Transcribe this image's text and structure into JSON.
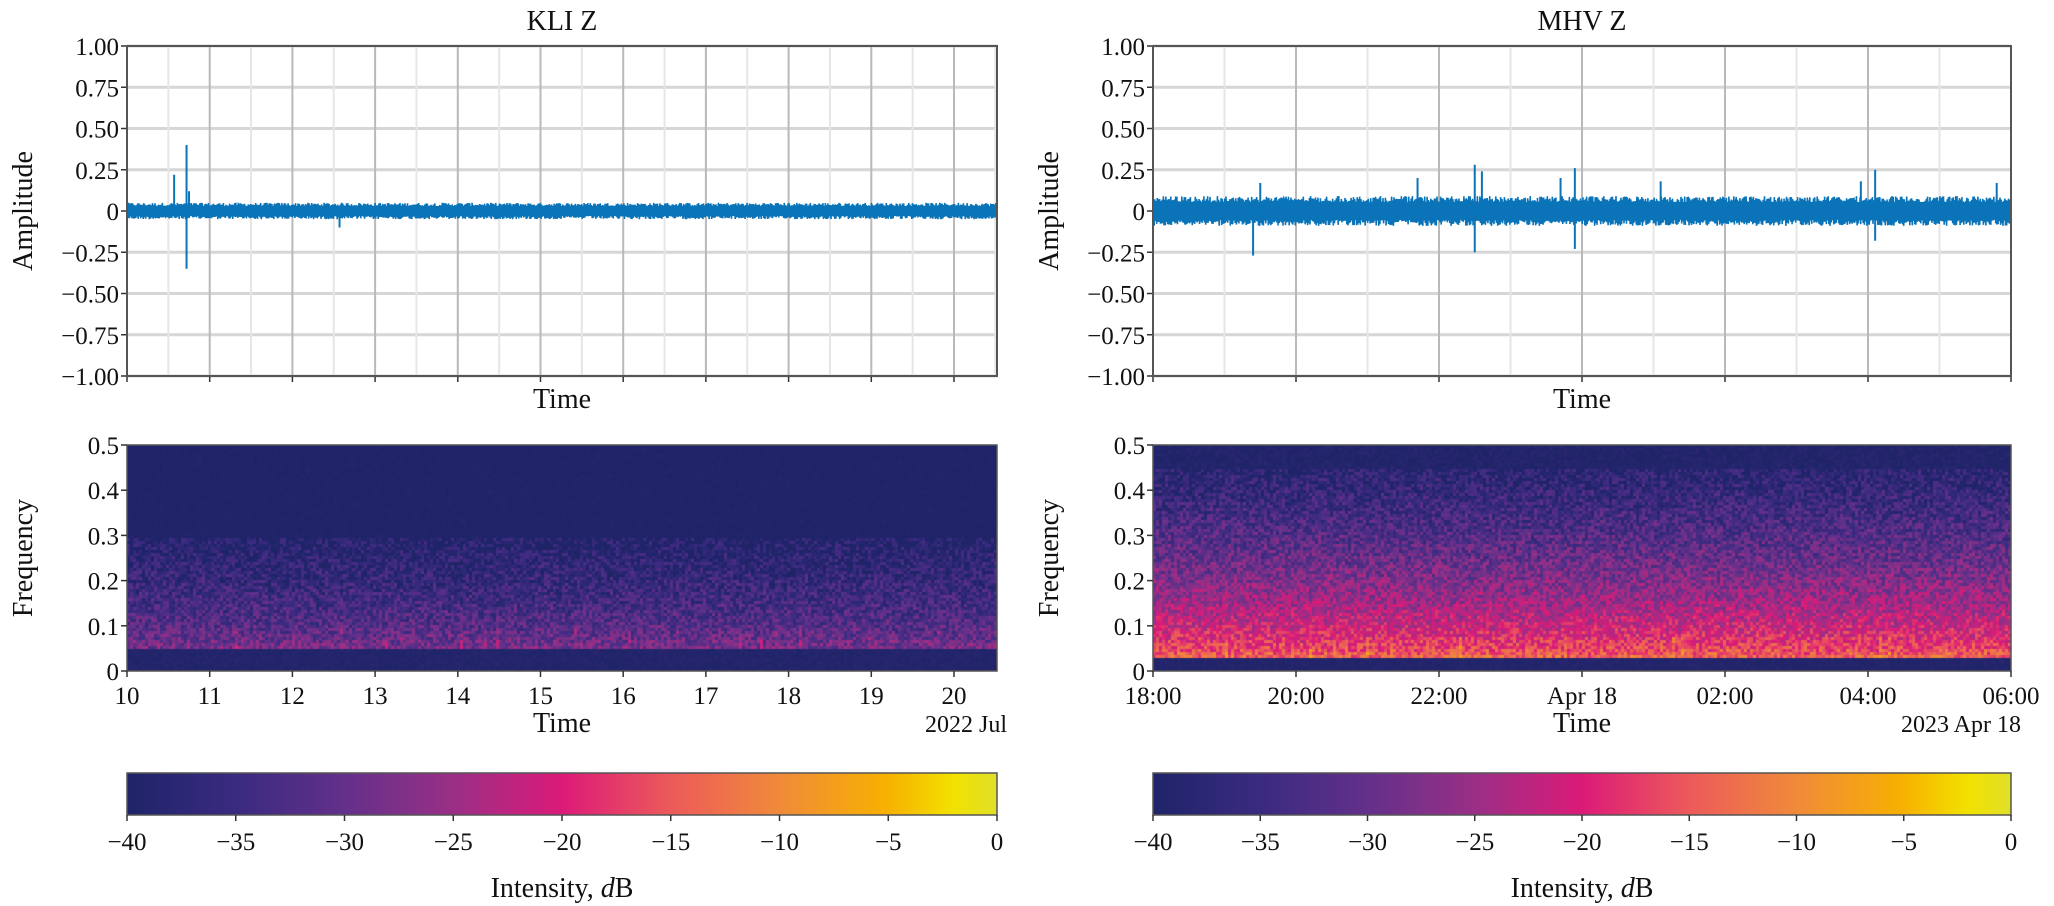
{
  "chart_data": [
    {
      "type": "line",
      "title": "KLI Z",
      "xlabel": "Time",
      "ylabel": "Amplitude",
      "ylim": [
        -1.0,
        1.0
      ],
      "xlim_days": [
        10,
        20.52
      ],
      "yticks": [
        "1.00",
        "0.75",
        "0.50",
        "0.25",
        "0",
        "−0.25",
        "−0.50",
        "−0.75",
        "−1.00"
      ],
      "yticks_values": [
        1,
        0.75,
        0.5,
        0.25,
        0,
        -0.25,
        -0.5,
        -0.75,
        -1
      ],
      "grid": true,
      "color": "#0b74b9",
      "noise_amplitude": 0.05,
      "spikes": [
        {
          "x": 10.57,
          "y": 0.22
        },
        {
          "x": 10.72,
          "y": 0.4
        },
        {
          "x": 10.72,
          "y": -0.35
        },
        {
          "x": 10.75,
          "y": 0.12
        },
        {
          "x": 12.57,
          "y": -0.1
        }
      ]
    },
    {
      "type": "heatmap",
      "xlabel": "Time",
      "ylabel": "Frequency",
      "ylim": [
        0,
        0.5
      ],
      "yticks": [
        "0.5",
        "0.4",
        "0.3",
        "0.2",
        "0.1",
        "0"
      ],
      "yticks_values": [
        0.5,
        0.4,
        0.3,
        0.2,
        0.1,
        0
      ],
      "xlim": [
        10,
        20.52
      ],
      "xticks": [
        "10",
        "11",
        "12",
        "13",
        "14",
        "15",
        "16",
        "17",
        "18",
        "19",
        "20"
      ],
      "xticks_values": [
        10,
        11,
        12,
        13,
        14,
        15,
        16,
        17,
        18,
        19,
        20
      ],
      "x_offset_label": "2022 Jul",
      "band_low": 0.05,
      "band_high": 0.3,
      "peak_db": -27,
      "floor_db": -39
    },
    {
      "type": "colorbar",
      "label_prefix": "Intensity, ",
      "label_unit_italic": "d",
      "label_unit_rest": "B",
      "range": [
        -40,
        0
      ],
      "ticks": [
        "−40",
        "−35",
        "−30",
        "−25",
        "−20",
        "−15",
        "−10",
        "−5",
        "0"
      ],
      "ticks_values": [
        -40,
        -35,
        -30,
        -25,
        -20,
        -15,
        -10,
        -5,
        0
      ]
    },
    {
      "type": "line",
      "title": "MHV Z",
      "xlabel": "Time",
      "ylabel": "Amplitude",
      "ylim": [
        -1.0,
        1.0
      ],
      "xlim_hours": [
        0,
        12
      ],
      "yticks": [
        "1.00",
        "0.75",
        "0.50",
        "0.25",
        "0",
        "−0.25",
        "−0.50",
        "−0.75",
        "−1.00"
      ],
      "yticks_values": [
        1,
        0.75,
        0.5,
        0.25,
        0,
        -0.25,
        -0.5,
        -0.75,
        -1
      ],
      "grid": true,
      "color": "#0b74b9",
      "noise_amplitude": 0.09,
      "spikes": [
        {
          "x": 1.4,
          "y": -0.27
        },
        {
          "x": 1.5,
          "y": 0.17
        },
        {
          "x": 3.7,
          "y": 0.2
        },
        {
          "x": 4.5,
          "y": 0.28
        },
        {
          "x": 4.5,
          "y": -0.25
        },
        {
          "x": 4.6,
          "y": 0.24
        },
        {
          "x": 5.7,
          "y": 0.2
        },
        {
          "x": 5.9,
          "y": 0.26
        },
        {
          "x": 5.9,
          "y": -0.23
        },
        {
          "x": 7.1,
          "y": 0.18
        },
        {
          "x": 9.9,
          "y": 0.18
        },
        {
          "x": 10.1,
          "y": 0.25
        },
        {
          "x": 10.1,
          "y": -0.18
        },
        {
          "x": 11.8,
          "y": 0.17
        }
      ]
    },
    {
      "type": "heatmap",
      "xlabel": "Time",
      "ylabel": "Frequency",
      "ylim": [
        0,
        0.5
      ],
      "yticks": [
        "0.5",
        "0.4",
        "0.3",
        "0.2",
        "0.1",
        "0"
      ],
      "yticks_values": [
        0.5,
        0.4,
        0.3,
        0.2,
        0.1,
        0
      ],
      "xlim_hours": [
        0,
        12
      ],
      "xticks": [
        "18:00",
        "20:00",
        "22:00",
        "Apr 18",
        "02:00",
        "04:00",
        "06:00"
      ],
      "xticks_values": [
        0,
        2,
        4,
        6,
        8,
        10,
        12
      ],
      "x_offset_label": "2023 Apr 18",
      "band_low": 0.03,
      "band_high": 0.45,
      "peak_db": -12,
      "floor_db": -38
    },
    {
      "type": "colorbar",
      "label_prefix": "Intensity, ",
      "label_unit_italic": "d",
      "label_unit_rest": "B",
      "range": [
        -40,
        0
      ],
      "ticks": [
        "−40",
        "−35",
        "−30",
        "−25",
        "−20",
        "−15",
        "−10",
        "−5",
        "0"
      ],
      "ticks_values": [
        -40,
        -35,
        -30,
        -25,
        -20,
        -15,
        -10,
        -5,
        0
      ]
    }
  ],
  "colormap": [
    "#1f2468",
    "#3a2a80",
    "#63308a",
    "#9a2f86",
    "#dc1a78",
    "#ec5a5a",
    "#f08a3a",
    "#f7b100",
    "#f2e100",
    "#e0e02a"
  ],
  "colormap_db": [
    -40,
    -35,
    -30,
    -25,
    -20,
    -15,
    -10,
    -5,
    -2,
    0
  ]
}
